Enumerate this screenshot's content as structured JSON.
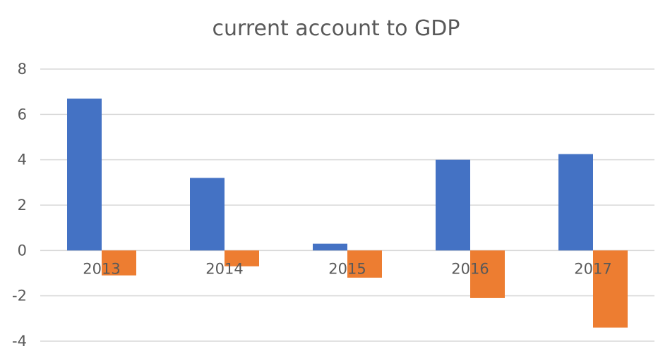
{
  "chart_data": {
    "type": "bar",
    "title": "current account to GDP",
    "categories": [
      "2013",
      "2014",
      "2015",
      "2016",
      "2017"
    ],
    "series": [
      {
        "values": [
          6.7,
          3.2,
          0.3,
          4.0,
          4.25
        ],
        "color": "#4472C4"
      },
      {
        "values": [
          -1.1,
          -0.7,
          -1.2,
          -2.1,
          -3.4
        ],
        "color": "#ED7D31"
      }
    ],
    "ylim": [
      -4,
      8
    ],
    "yticks": [
      "8",
      "6",
      "4",
      "2",
      "0",
      "-2",
      "-4"
    ],
    "grid": true,
    "xlabel": "",
    "ylabel": ""
  }
}
